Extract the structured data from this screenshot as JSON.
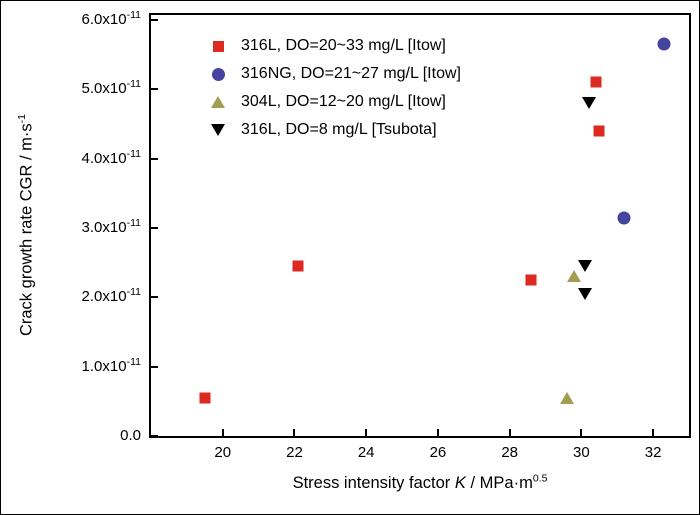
{
  "figure": {
    "background": "#ffffff",
    "frame_color": "#000000"
  },
  "chart_data": {
    "type": "scatter",
    "title": "",
    "grid": false,
    "legend": {
      "position": "inside-top-left"
    },
    "xlabel": {
      "prefix": "Stress intensity factor ",
      "variable": "K",
      "middle": " / MPa·m",
      "superscript": "0.5"
    },
    "ylabel": {
      "main": "Crack growth rate CGR / m·s",
      "superscript": "-1"
    },
    "x_axis": {
      "min": 18,
      "max": 33,
      "ticks": [
        {
          "value": 20,
          "label": "20"
        },
        {
          "value": 22,
          "label": "22"
        },
        {
          "value": 24,
          "label": "24"
        },
        {
          "value": 26,
          "label": "26"
        },
        {
          "value": 28,
          "label": "28"
        },
        {
          "value": 30,
          "label": "30"
        },
        {
          "value": 32,
          "label": "32"
        }
      ]
    },
    "y_axis": {
      "min_e11": 0,
      "max_e11": 6.07,
      "ticks": [
        {
          "value_e11": 0,
          "label_main": "0.0",
          "label_sup": ""
        },
        {
          "value_e11": 1,
          "label_main": "1.0x10",
          "label_sup": "-11"
        },
        {
          "value_e11": 2,
          "label_main": "2.0x10",
          "label_sup": "-11"
        },
        {
          "value_e11": 3,
          "label_main": "3.0x10",
          "label_sup": "-11"
        },
        {
          "value_e11": 4,
          "label_main": "4.0x10",
          "label_sup": "-11"
        },
        {
          "value_e11": 5,
          "label_main": "5.0x10",
          "label_sup": "-11"
        },
        {
          "value_e11": 6,
          "label_main": "6.0x10",
          "label_sup": "-11"
        }
      ]
    },
    "series": [
      {
        "name": "316L, DO=20~33 mg/L [Itow]",
        "marker": "square",
        "color": "#dd2a21",
        "points_K_CGRe11": [
          [
            19.5,
            0.55
          ],
          [
            22.1,
            2.45
          ],
          [
            28.6,
            2.25
          ],
          [
            30.4,
            5.1
          ],
          [
            30.5,
            4.4
          ]
        ]
      },
      {
        "name": "316NG, DO=21~27 mg/L [Itow]",
        "marker": "circle",
        "color": "#44449f",
        "points_K_CGRe11": [
          [
            32.3,
            5.65
          ],
          [
            31.2,
            3.15
          ]
        ]
      },
      {
        "name": "304L, DO=12~20 mg/L [Itow]",
        "marker": "triangle-up",
        "color": "#a39d52",
        "points_K_CGRe11": [
          [
            29.8,
            2.3
          ],
          [
            29.6,
            0.55
          ]
        ]
      },
      {
        "name": "316L, DO=8 mg/L [Tsubota]",
        "marker": "triangle-down",
        "color": "#000000",
        "points_K_CGRe11": [
          [
            30.2,
            4.8
          ],
          [
            30.1,
            2.45
          ],
          [
            30.1,
            2.05
          ]
        ]
      }
    ]
  }
}
